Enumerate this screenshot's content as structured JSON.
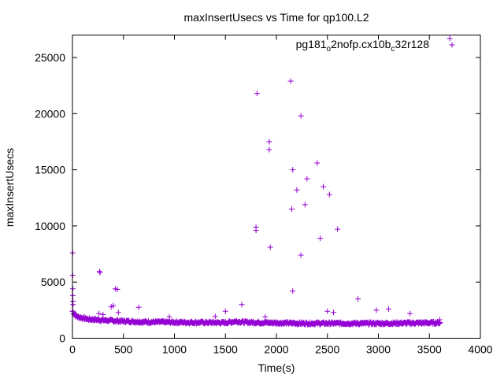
{
  "chart_data": {
    "type": "scatter",
    "title": "maxInsertUsecs vs Time for qp100.L2",
    "xlabel": "Time(s)",
    "ylabel": "maxInsertUsecs",
    "xlim": [
      0,
      4000
    ],
    "ylim": [
      0,
      27000
    ],
    "xticks": [
      0,
      500,
      1000,
      1500,
      2000,
      2500,
      3000,
      3500,
      4000
    ],
    "yticks": [
      0,
      5000,
      10000,
      15000,
      20000,
      25000
    ],
    "grid": false,
    "legend_position": "top-right",
    "marker": "plus",
    "series": [
      {
        "name_parts": [
          "pg181",
          "o",
          "2nofp.cx10b",
          "c",
          "32r128"
        ],
        "name_styles": [
          "normal",
          "sub",
          "normal",
          "sub",
          "normal"
        ],
        "color": "#9400d3",
        "baseline": {
          "x_start": 0,
          "x_end": 3600,
          "x_step": 10,
          "y_profile": [
            [
              0,
              2400
            ],
            [
              20,
              2100
            ],
            [
              50,
              1900
            ],
            [
              150,
              1700
            ],
            [
              400,
              1550
            ],
            [
              700,
              1450
            ],
            [
              1500,
              1380
            ],
            [
              1600,
              1500
            ],
            [
              1700,
              1420
            ],
            [
              2200,
              1330
            ],
            [
              3000,
              1320
            ],
            [
              3600,
              1380
            ]
          ]
        },
        "outliers": [
          [
            3,
            7600
          ],
          [
            3,
            5600
          ],
          [
            4,
            4400
          ],
          [
            4,
            3800
          ],
          [
            5,
            3300
          ],
          [
            6,
            3000
          ],
          [
            265,
            5950
          ],
          [
            270,
            5850
          ],
          [
            260,
            2200
          ],
          [
            300,
            2100
          ],
          [
            380,
            2800
          ],
          [
            400,
            2900
          ],
          [
            420,
            4400
          ],
          [
            440,
            4350
          ],
          [
            450,
            2300
          ],
          [
            650,
            2750
          ],
          [
            950,
            1900
          ],
          [
            1400,
            1950
          ],
          [
            1500,
            2400
          ],
          [
            1660,
            3000
          ],
          [
            1800,
            9900
          ],
          [
            1800,
            9600
          ],
          [
            1810,
            21800
          ],
          [
            1890,
            1900
          ],
          [
            1930,
            17500
          ],
          [
            1930,
            16800
          ],
          [
            1940,
            8100
          ],
          [
            2140,
            22900
          ],
          [
            2150,
            11500
          ],
          [
            2160,
            15000
          ],
          [
            2160,
            4200
          ],
          [
            2200,
            13200
          ],
          [
            2240,
            19800
          ],
          [
            2240,
            7400
          ],
          [
            2280,
            11900
          ],
          [
            2300,
            14200
          ],
          [
            2400,
            15600
          ],
          [
            2430,
            8900
          ],
          [
            2460,
            13500
          ],
          [
            2520,
            12800
          ],
          [
            2600,
            9700
          ],
          [
            2500,
            2400
          ],
          [
            2560,
            2300
          ],
          [
            2800,
            3500
          ],
          [
            2980,
            2500
          ],
          [
            3100,
            2600
          ],
          [
            3310,
            2200
          ],
          [
            3600,
            1650
          ],
          [
            3700,
            26700
          ]
        ]
      }
    ]
  }
}
